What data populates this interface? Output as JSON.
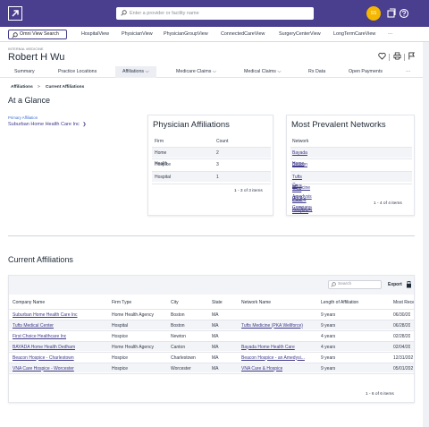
{
  "topbar": {
    "search_placeholder": "Enter a provider or facility name",
    "avatar_initials": "SS"
  },
  "subnav": {
    "omni_label": "Omni View Search",
    "views": [
      "HospitalView",
      "PhysicianView",
      "PhysicianGroupView",
      "ConnectedCareView",
      "SurgeryCenterView",
      "LongTermCareView",
      "···"
    ]
  },
  "header": {
    "kind": "INTERNAL MEDICINE",
    "name": "Robert H Wu"
  },
  "tabs": [
    "Summary",
    "Practice Locations",
    "Affiliations ⌵",
    "Medicare Claims ⌵",
    "Medical Claims ⌵",
    "Rx Data",
    "Open Payments",
    "···"
  ],
  "breadcrumb": {
    "root": "Affiliations",
    "sep": ">",
    "current": "Current Affiliations"
  },
  "glance": {
    "title": "At a Glance",
    "primary_label": "Primary Affiliation",
    "primary_value": "Suburban Home Health Care Inc",
    "primary_chevron": "❯"
  },
  "physician_affiliations": {
    "title": "Physician Affiliations",
    "headers": [
      "Firm Type",
      "Count"
    ],
    "rows": [
      [
        "Home Health Agency",
        "2"
      ],
      [
        "Hospice",
        "3"
      ],
      [
        "Hospital",
        "1"
      ]
    ],
    "footer": "1 - 3 of 3 items"
  },
  "prevalent_networks": {
    "title": "Most Prevalent Networks",
    "header": "Network Name",
    "rows": [
      "Bayada Home Health Care",
      "Beacon Hospice - an Amedysis Company",
      "Tufts Medicine (PKA Wellforce)",
      "VNA Care & Hospice"
    ],
    "footer": "1 - 4 of 4 items"
  },
  "current": {
    "title": "Current Affiliations",
    "search_placeholder": "Search",
    "export_label": "Export",
    "headers": [
      "Company Name",
      "Firm Type",
      "City",
      "State",
      "Network Name",
      "Length of Affiliation",
      "Most Rece"
    ],
    "rows": [
      [
        "Suburban Home Health Care Inc",
        "Home Health Agency",
        "Boston",
        "MA",
        "",
        "9 years",
        "06/30/20"
      ],
      [
        "Tufts Medical Center",
        "Hospital",
        "Boston",
        "MA",
        "Tufts Medicine (PKA Wellforce)",
        "9 years",
        "06/28/20"
      ],
      [
        "First Choice Healthcare Inc",
        "Hospice",
        "Newton",
        "MA",
        "",
        "4 years",
        "02/28/20"
      ],
      [
        "BAYADA Home Health Dedham",
        "Home Health Agency",
        "Canton",
        "MA",
        "Bayada Home Health Care",
        "4 years",
        "02/04/20"
      ],
      [
        "Beacon Hospice - Charlestown",
        "Hospice",
        "Charlestown",
        "MA",
        "Beacon Hospice - an Amedysi...",
        "9 years",
        "12/31/202"
      ],
      [
        "VNA Care Hospice - Worcester",
        "Hospice",
        "Worcester",
        "MA",
        "VNA Care & Hospice",
        "9 years",
        "05/01/202"
      ]
    ],
    "footer": "1 - 6 of 6 items"
  },
  "colors": {
    "brand": "#4a3e8f",
    "link": "#3f3a8a",
    "avatar": "#f5b700"
  }
}
